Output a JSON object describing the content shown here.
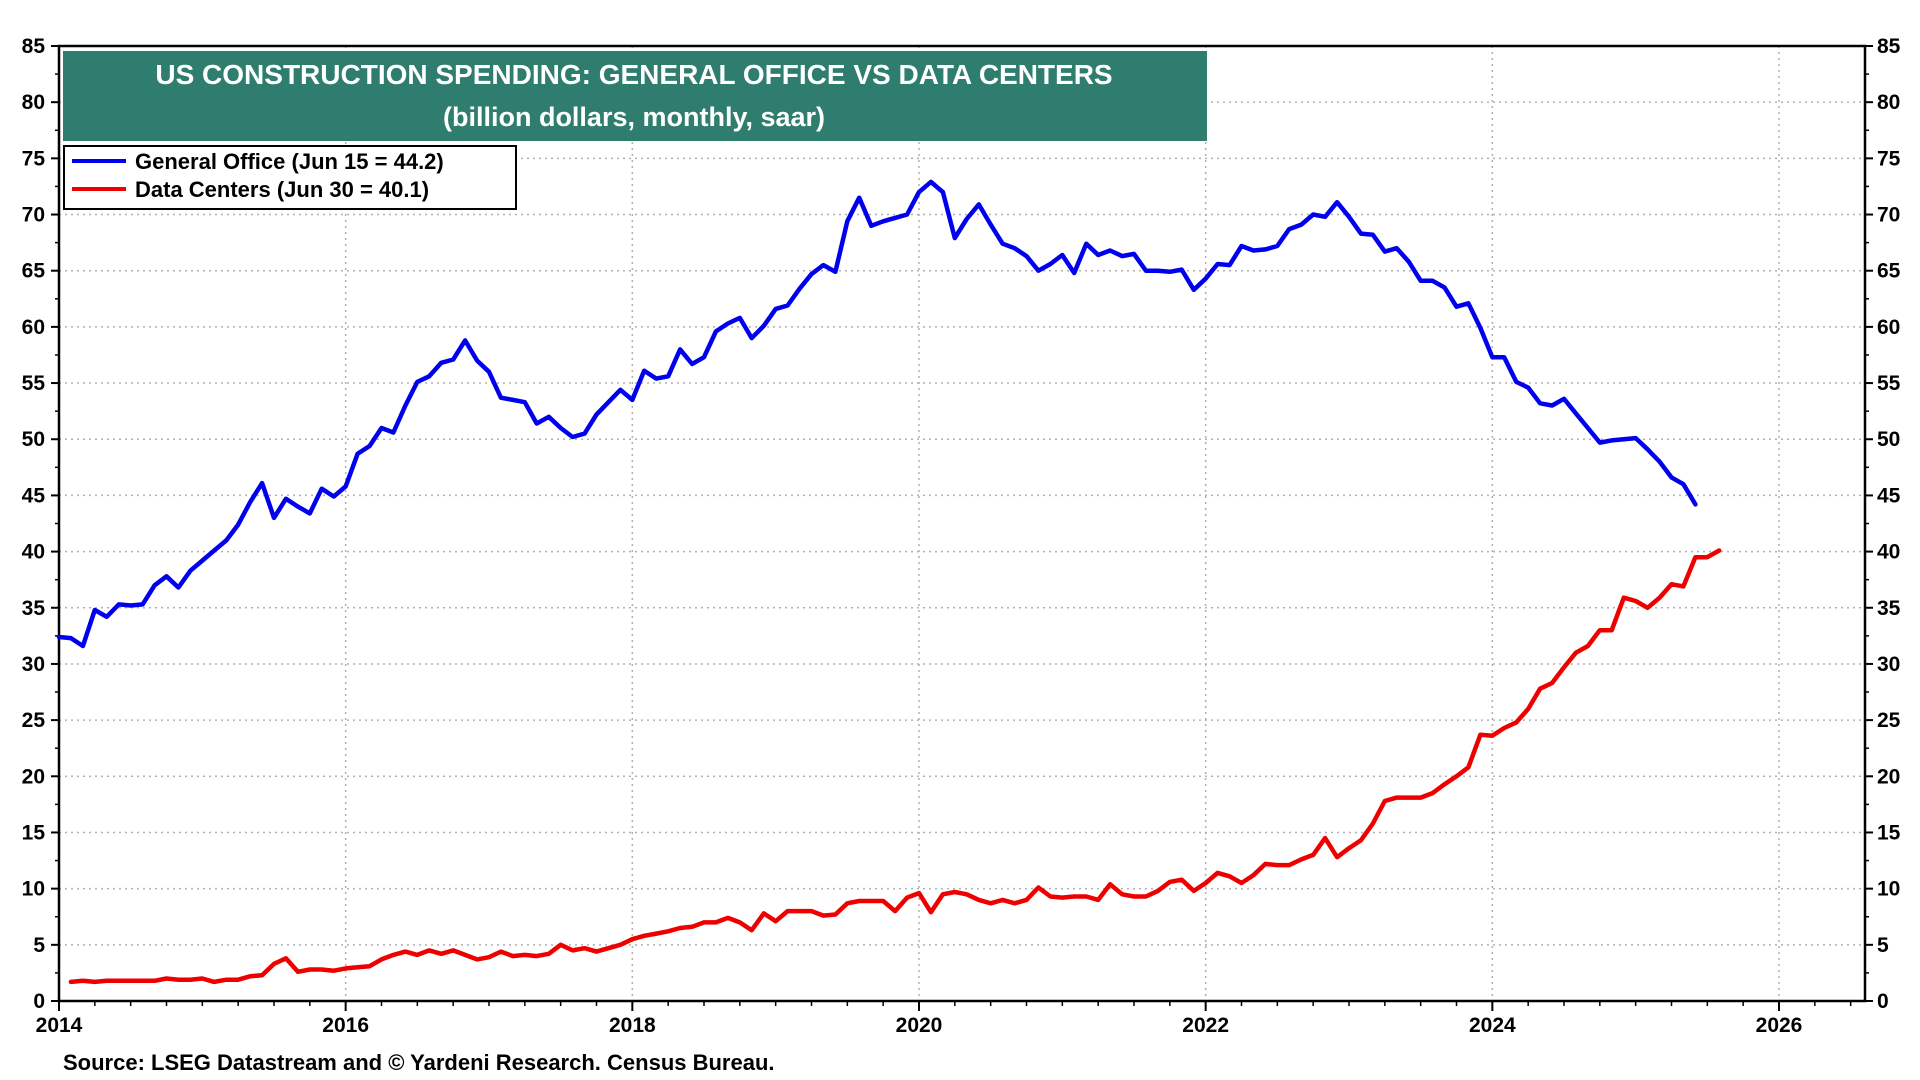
{
  "chart_data": {
    "type": "line",
    "title": "US CONSTRUCTION SPENDING: GENERAL OFFICE VS DATA CENTERS",
    "subtitle": "(billion dollars, monthly, saar)",
    "source": "Source: LSEG Datastream and © Yardeni Research. Census Bureau.",
    "xlim": [
      2014,
      2026.6
    ],
    "ylim": [
      0,
      85
    ],
    "x_ticks": [
      "2014",
      "2016",
      "2018",
      "2020",
      "2022",
      "2024",
      "2026"
    ],
    "y_ticks": [
      "0",
      "5",
      "10",
      "15",
      "20",
      "25",
      "30",
      "35",
      "40",
      "45",
      "50",
      "55",
      "60",
      "65",
      "70",
      "75",
      "80",
      "85"
    ],
    "grid": true,
    "legend_position": "top-left",
    "title_color": "#2e7d6e",
    "series": [
      {
        "name": "General Office (Jun 15 = 44.2)",
        "color": "#0000ee",
        "points": [
          [
            2014.0,
            32.4
          ],
          [
            2014.083,
            32.3
          ],
          [
            2014.167,
            31.6
          ],
          [
            2014.25,
            34.8
          ],
          [
            2014.333,
            34.2
          ],
          [
            2014.417,
            35.3
          ],
          [
            2014.5,
            35.2
          ],
          [
            2014.583,
            35.3
          ],
          [
            2014.667,
            37.0
          ],
          [
            2014.75,
            37.8
          ],
          [
            2014.833,
            36.8
          ],
          [
            2014.917,
            38.3
          ],
          [
            2015.0,
            39.2
          ],
          [
            2015.083,
            40.1
          ],
          [
            2015.167,
            41.0
          ],
          [
            2015.25,
            42.4
          ],
          [
            2015.333,
            44.4
          ],
          [
            2015.417,
            46.1
          ],
          [
            2015.5,
            43.0
          ],
          [
            2015.583,
            44.7
          ],
          [
            2015.667,
            44.0
          ],
          [
            2015.75,
            43.4
          ],
          [
            2015.833,
            45.6
          ],
          [
            2015.917,
            44.9
          ],
          [
            2016.0,
            45.8
          ],
          [
            2016.083,
            48.7
          ],
          [
            2016.167,
            49.4
          ],
          [
            2016.25,
            51.0
          ],
          [
            2016.333,
            50.6
          ],
          [
            2016.417,
            53.0
          ],
          [
            2016.5,
            55.1
          ],
          [
            2016.583,
            55.6
          ],
          [
            2016.667,
            56.8
          ],
          [
            2016.75,
            57.1
          ],
          [
            2016.833,
            58.8
          ],
          [
            2016.917,
            57.0
          ],
          [
            2017.0,
            56.0
          ],
          [
            2017.083,
            53.7
          ],
          [
            2017.167,
            53.5
          ],
          [
            2017.25,
            53.3
          ],
          [
            2017.333,
            51.4
          ],
          [
            2017.417,
            52.0
          ],
          [
            2017.5,
            51.0
          ],
          [
            2017.583,
            50.2
          ],
          [
            2017.667,
            50.5
          ],
          [
            2017.75,
            52.2
          ],
          [
            2017.833,
            53.3
          ],
          [
            2017.917,
            54.4
          ],
          [
            2018.0,
            53.5
          ],
          [
            2018.083,
            56.1
          ],
          [
            2018.167,
            55.4
          ],
          [
            2018.25,
            55.6
          ],
          [
            2018.333,
            58.0
          ],
          [
            2018.417,
            56.7
          ],
          [
            2018.5,
            57.3
          ],
          [
            2018.583,
            59.6
          ],
          [
            2018.667,
            60.3
          ],
          [
            2018.75,
            60.8
          ],
          [
            2018.833,
            59.0
          ],
          [
            2018.917,
            60.1
          ],
          [
            2019.0,
            61.6
          ],
          [
            2019.083,
            61.9
          ],
          [
            2019.167,
            63.4
          ],
          [
            2019.25,
            64.7
          ],
          [
            2019.333,
            65.5
          ],
          [
            2019.417,
            64.9
          ],
          [
            2019.5,
            69.4
          ],
          [
            2019.583,
            71.5
          ],
          [
            2019.667,
            69.0
          ],
          [
            2019.75,
            69.4
          ],
          [
            2019.833,
            69.7
          ],
          [
            2019.917,
            70.0
          ],
          [
            2020.0,
            72.0
          ],
          [
            2020.083,
            72.9
          ],
          [
            2020.167,
            72.0
          ],
          [
            2020.25,
            67.9
          ],
          [
            2020.333,
            69.6
          ],
          [
            2020.417,
            70.9
          ],
          [
            2020.5,
            69.1
          ],
          [
            2020.583,
            67.4
          ],
          [
            2020.667,
            67.0
          ],
          [
            2020.75,
            66.3
          ],
          [
            2020.833,
            65.0
          ],
          [
            2020.917,
            65.6
          ],
          [
            2021.0,
            66.4
          ],
          [
            2021.083,
            64.8
          ],
          [
            2021.167,
            67.4
          ],
          [
            2021.25,
            66.4
          ],
          [
            2021.333,
            66.8
          ],
          [
            2021.417,
            66.3
          ],
          [
            2021.5,
            66.5
          ],
          [
            2021.583,
            65.0
          ],
          [
            2021.667,
            65.0
          ],
          [
            2021.75,
            64.9
          ],
          [
            2021.833,
            65.1
          ],
          [
            2021.917,
            63.3
          ],
          [
            2022.0,
            64.3
          ],
          [
            2022.083,
            65.6
          ],
          [
            2022.167,
            65.5
          ],
          [
            2022.25,
            67.2
          ],
          [
            2022.333,
            66.8
          ],
          [
            2022.417,
            66.9
          ],
          [
            2022.5,
            67.2
          ],
          [
            2022.583,
            68.7
          ],
          [
            2022.667,
            69.1
          ],
          [
            2022.75,
            70.0
          ],
          [
            2022.833,
            69.8
          ],
          [
            2022.917,
            71.1
          ],
          [
            2023.0,
            69.8
          ],
          [
            2023.083,
            68.3
          ],
          [
            2023.167,
            68.2
          ],
          [
            2023.25,
            66.7
          ],
          [
            2023.333,
            67.0
          ],
          [
            2023.417,
            65.8
          ],
          [
            2023.5,
            64.1
          ],
          [
            2023.583,
            64.1
          ],
          [
            2023.667,
            63.5
          ],
          [
            2023.75,
            61.8
          ],
          [
            2023.833,
            62.1
          ],
          [
            2023.917,
            59.9
          ],
          [
            2024.0,
            57.3
          ],
          [
            2024.083,
            57.3
          ],
          [
            2024.167,
            55.1
          ],
          [
            2024.25,
            54.6
          ],
          [
            2024.333,
            53.2
          ],
          [
            2024.417,
            53.0
          ],
          [
            2024.5,
            53.6
          ],
          [
            2024.583,
            52.3
          ],
          [
            2024.667,
            51.0
          ],
          [
            2024.75,
            49.7
          ],
          [
            2024.833,
            49.9
          ],
          [
            2024.917,
            50.0
          ],
          [
            2025.0,
            50.1
          ],
          [
            2025.083,
            49.1
          ],
          [
            2025.167,
            48.0
          ],
          [
            2025.25,
            46.6
          ],
          [
            2025.333,
            46.0
          ],
          [
            2025.417,
            44.2
          ]
        ]
      },
      {
        "name": "Data Centers (Jun 30 = 40.1)",
        "color": "#ee0000",
        "points": [
          [
            2014.083,
            1.7
          ],
          [
            2014.167,
            1.8
          ],
          [
            2014.25,
            1.7
          ],
          [
            2014.333,
            1.8
          ],
          [
            2014.417,
            1.8
          ],
          [
            2014.5,
            1.8
          ],
          [
            2014.583,
            1.8
          ],
          [
            2014.667,
            1.8
          ],
          [
            2014.75,
            2.0
          ],
          [
            2014.833,
            1.9
          ],
          [
            2014.917,
            1.9
          ],
          [
            2015.0,
            2.0
          ],
          [
            2015.083,
            1.7
          ],
          [
            2015.167,
            1.9
          ],
          [
            2015.25,
            1.9
          ],
          [
            2015.333,
            2.2
          ],
          [
            2015.417,
            2.3
          ],
          [
            2015.5,
            3.3
          ],
          [
            2015.583,
            3.8
          ],
          [
            2015.667,
            2.6
          ],
          [
            2015.75,
            2.8
          ],
          [
            2015.833,
            2.8
          ],
          [
            2015.917,
            2.7
          ],
          [
            2016.0,
            2.9
          ],
          [
            2016.083,
            3.0
          ],
          [
            2016.167,
            3.1
          ],
          [
            2016.25,
            3.7
          ],
          [
            2016.333,
            4.1
          ],
          [
            2016.417,
            4.4
          ],
          [
            2016.5,
            4.1
          ],
          [
            2016.583,
            4.5
          ],
          [
            2016.667,
            4.2
          ],
          [
            2016.75,
            4.5
          ],
          [
            2016.833,
            4.1
          ],
          [
            2016.917,
            3.7
          ],
          [
            2017.0,
            3.9
          ],
          [
            2017.083,
            4.4
          ],
          [
            2017.167,
            4.0
          ],
          [
            2017.25,
            4.1
          ],
          [
            2017.333,
            4.0
          ],
          [
            2017.417,
            4.2
          ],
          [
            2017.5,
            5.0
          ],
          [
            2017.583,
            4.5
          ],
          [
            2017.667,
            4.7
          ],
          [
            2017.75,
            4.4
          ],
          [
            2017.833,
            4.7
          ],
          [
            2017.917,
            5.0
          ],
          [
            2018.0,
            5.5
          ],
          [
            2018.083,
            5.8
          ],
          [
            2018.167,
            6.0
          ],
          [
            2018.25,
            6.2
          ],
          [
            2018.333,
            6.5
          ],
          [
            2018.417,
            6.6
          ],
          [
            2018.5,
            7.0
          ],
          [
            2018.583,
            7.0
          ],
          [
            2018.667,
            7.4
          ],
          [
            2018.75,
            7.0
          ],
          [
            2018.833,
            6.3
          ],
          [
            2018.917,
            7.8
          ],
          [
            2019.0,
            7.1
          ],
          [
            2019.083,
            8.0
          ],
          [
            2019.167,
            8.0
          ],
          [
            2019.25,
            8.0
          ],
          [
            2019.333,
            7.6
          ],
          [
            2019.417,
            7.7
          ],
          [
            2019.5,
            8.7
          ],
          [
            2019.583,
            8.9
          ],
          [
            2019.667,
            8.9
          ],
          [
            2019.75,
            8.9
          ],
          [
            2019.833,
            8.0
          ],
          [
            2019.917,
            9.2
          ],
          [
            2020.0,
            9.6
          ],
          [
            2020.083,
            7.9
          ],
          [
            2020.167,
            9.5
          ],
          [
            2020.25,
            9.7
          ],
          [
            2020.333,
            9.5
          ],
          [
            2020.417,
            9.0
          ],
          [
            2020.5,
            8.7
          ],
          [
            2020.583,
            9.0
          ],
          [
            2020.667,
            8.7
          ],
          [
            2020.75,
            9.0
          ],
          [
            2020.833,
            10.1
          ],
          [
            2020.917,
            9.3
          ],
          [
            2021.0,
            9.2
          ],
          [
            2021.083,
            9.3
          ],
          [
            2021.167,
            9.3
          ],
          [
            2021.25,
            9.0
          ],
          [
            2021.333,
            10.4
          ],
          [
            2021.417,
            9.5
          ],
          [
            2021.5,
            9.3
          ],
          [
            2021.583,
            9.3
          ],
          [
            2021.667,
            9.8
          ],
          [
            2021.75,
            10.6
          ],
          [
            2021.833,
            10.8
          ],
          [
            2021.917,
            9.8
          ],
          [
            2022.0,
            10.5
          ],
          [
            2022.083,
            11.4
          ],
          [
            2022.167,
            11.1
          ],
          [
            2022.25,
            10.5
          ],
          [
            2022.333,
            11.2
          ],
          [
            2022.417,
            12.2
          ],
          [
            2022.5,
            12.1
          ],
          [
            2022.583,
            12.1
          ],
          [
            2022.667,
            12.6
          ],
          [
            2022.75,
            13.0
          ],
          [
            2022.833,
            14.5
          ],
          [
            2022.917,
            12.8
          ],
          [
            2023.0,
            13.6
          ],
          [
            2023.083,
            14.3
          ],
          [
            2023.167,
            15.8
          ],
          [
            2023.25,
            17.8
          ],
          [
            2023.333,
            18.1
          ],
          [
            2023.417,
            18.1
          ],
          [
            2023.5,
            18.1
          ],
          [
            2023.583,
            18.5
          ],
          [
            2023.667,
            19.3
          ],
          [
            2023.75,
            20.0
          ],
          [
            2023.833,
            20.8
          ],
          [
            2023.917,
            23.7
          ],
          [
            2024.0,
            23.6
          ],
          [
            2024.083,
            24.3
          ],
          [
            2024.167,
            24.8
          ],
          [
            2024.25,
            26.0
          ],
          [
            2024.333,
            27.8
          ],
          [
            2024.417,
            28.3
          ],
          [
            2024.5,
            29.7
          ],
          [
            2024.583,
            31.0
          ],
          [
            2024.667,
            31.6
          ],
          [
            2024.75,
            33.0
          ],
          [
            2024.833,
            33.0
          ],
          [
            2024.917,
            35.9
          ],
          [
            2025.0,
            35.6
          ],
          [
            2025.083,
            35.0
          ],
          [
            2025.167,
            35.9
          ],
          [
            2025.25,
            37.1
          ],
          [
            2025.333,
            36.9
          ],
          [
            2025.417,
            39.5
          ],
          [
            2025.5,
            39.5
          ],
          [
            2025.583,
            40.1
          ]
        ]
      }
    ]
  }
}
